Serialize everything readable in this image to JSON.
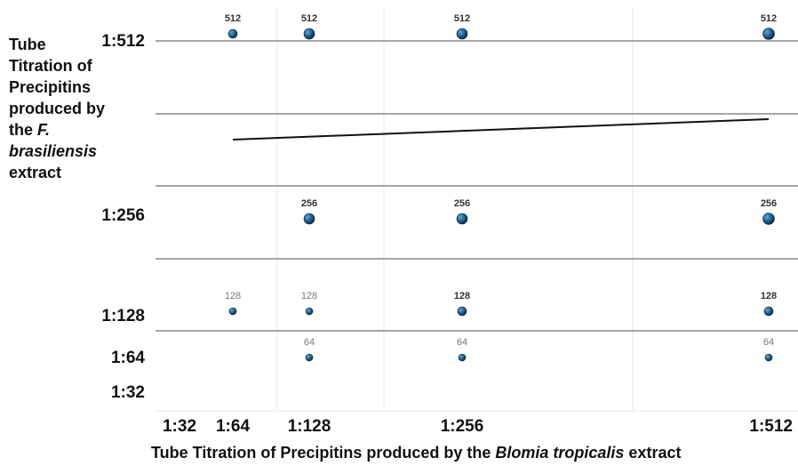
{
  "chart_data": {
    "type": "scatter",
    "title": "",
    "ylabel": {
      "line1": "Tube",
      "line2": "Titration of",
      "line3": "Precipitins",
      "line4": "produced by",
      "line5_prefix": "the ",
      "line5_italic": "F.",
      "line6_italic": "brasiliensis",
      "line7": "extract"
    },
    "xlabel": {
      "prefix": "Tube Titration of Precipitins produced by the ",
      "italic": "Blomia tropicalis",
      "suffix": " extract"
    },
    "x_tick_labels": [
      "1:32",
      "1:64",
      "1:128",
      "1:256",
      "1:512"
    ],
    "y_tick_labels": [
      "1:512",
      "1:256",
      "1:128",
      "1:64",
      "1:32"
    ],
    "points": [
      {
        "x": "1:64",
        "y": "1:512",
        "label": "512"
      },
      {
        "x": "1:128",
        "y": "1:512",
        "label": "512"
      },
      {
        "x": "1:256",
        "y": "1:512",
        "label": "512"
      },
      {
        "x": "1:512",
        "y": "1:512",
        "label": "512"
      },
      {
        "x": "1:128",
        "y": "1:256",
        "label": "256"
      },
      {
        "x": "1:256",
        "y": "1:256",
        "label": "256"
      },
      {
        "x": "1:512",
        "y": "1:256",
        "label": "256"
      },
      {
        "x": "1:64",
        "y": "1:128",
        "label": "128"
      },
      {
        "x": "1:128",
        "y": "1:128",
        "label": "128"
      },
      {
        "x": "1:256",
        "y": "1:128",
        "label": "128"
      },
      {
        "x": "1:512",
        "y": "1:128",
        "label": "128"
      },
      {
        "x": "1:128",
        "y": "1:64",
        "label": "64"
      },
      {
        "x": "1:256",
        "y": "1:64",
        "label": "64"
      },
      {
        "x": "1:512",
        "y": "1:64",
        "label": "64"
      }
    ],
    "trend_line": {
      "x_start": "1:64",
      "x_end": "1:512"
    },
    "grid": true,
    "legend": "none",
    "colors": {
      "point": "#1f5f8b",
      "point_dark": "#0d2438",
      "grid_major": "#a6a6a6",
      "grid_minor": "#e5e5e5",
      "trend": "#111111"
    }
  }
}
